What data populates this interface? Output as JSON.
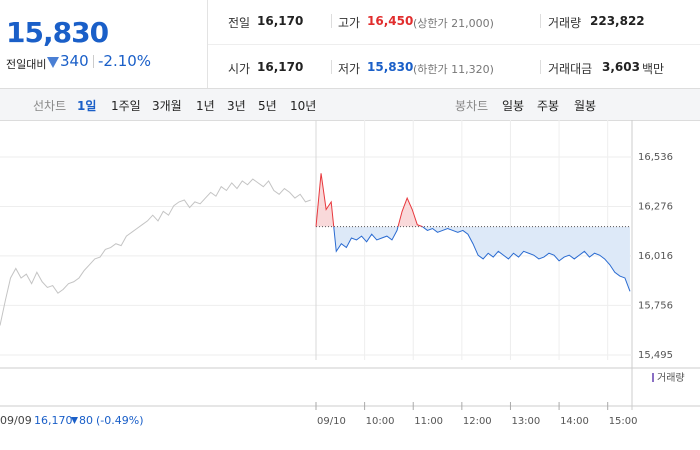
{
  "header": {
    "price": "15,830",
    "change_label": "전일대비",
    "change": "340",
    "change_rate": "-2.10%",
    "stats": [
      {
        "label": "전일",
        "value": "16,170"
      },
      {
        "label": "고가",
        "value": "16,450",
        "note": "(상한가 21,000)"
      },
      {
        "label": "거래량",
        "value": "223,822"
      },
      {
        "label": "시가",
        "value": "16,170"
      },
      {
        "label": "저가",
        "value": "15,830",
        "note": "(하한가 11,320)"
      },
      {
        "label": "거래대금",
        "value": "3,603",
        "unit": "백만"
      }
    ]
  },
  "toolbar": {
    "line_label": "선차트",
    "line_periods": [
      "1일",
      "1주일",
      "3개월",
      "1년",
      "3년",
      "5년",
      "10년"
    ],
    "active_index": 0,
    "candle_label": "봉차트",
    "candle_periods": [
      "일봉",
      "주봉",
      "월봉"
    ]
  },
  "chart_data": {
    "type": "line",
    "xlim": [
      0,
      780
    ],
    "xticks": [
      {
        "value": 390,
        "label": "09/10"
      },
      {
        "value": 450,
        "label": "10:00"
      },
      {
        "value": 510,
        "label": "11:00"
      },
      {
        "value": 570,
        "label": "12:00"
      },
      {
        "value": 630,
        "label": "13:00"
      },
      {
        "value": 690,
        "label": "14:00"
      },
      {
        "value": 750,
        "label": "15:00"
      }
    ],
    "ylim": [
      15495,
      16536
    ],
    "yticks": [
      {
        "value": 16536,
        "label": "16,536"
      },
      {
        "value": 16276,
        "label": "16,276"
      },
      {
        "value": 16016,
        "label": "16,016"
      },
      {
        "value": 15756,
        "label": "15,756"
      },
      {
        "value": 15495,
        "label": "15,495"
      }
    ],
    "grid": true,
    "baseline": 16170,
    "series": [
      {
        "color": "#c4c4c4",
        "x": [
          0,
          6.5,
          13,
          19.5,
          26,
          32.5,
          39,
          45.5,
          52,
          58.5,
          65,
          71.5,
          78,
          84.5,
          91,
          97.5,
          104,
          110.5,
          117,
          123.5,
          130,
          136.5,
          143,
          149.5,
          156,
          162.5,
          169,
          175.5,
          182,
          188.5,
          195,
          201.5,
          208,
          214.5,
          221,
          227.5,
          234,
          240.5,
          247,
          253.5,
          260,
          266.5,
          273,
          279.5,
          286,
          292.5,
          299,
          305.5,
          312,
          318.5,
          325,
          331.5,
          338,
          344.5,
          351,
          357.5,
          364,
          370.5,
          377,
          383.5
        ],
        "values": [
          15650,
          15780,
          15900,
          15950,
          15900,
          15920,
          15870,
          15930,
          15880,
          15850,
          15860,
          15820,
          15840,
          15870,
          15880,
          15900,
          15940,
          15970,
          16000,
          16010,
          16050,
          16060,
          16080,
          16070,
          16120,
          16140,
          16160,
          16180,
          16200,
          16230,
          16200,
          16250,
          16230,
          16280,
          16300,
          16310,
          16270,
          16300,
          16290,
          16320,
          16350,
          16330,
          16380,
          16360,
          16400,
          16370,
          16410,
          16390,
          16420,
          16400,
          16380,
          16410,
          16360,
          16340,
          16370,
          16350,
          16320,
          16340,
          16300,
          16310
        ]
      },
      {
        "color": "#2a6bd1",
        "up_color": "#e8383d",
        "fill": "#dde9f8",
        "up_fill": "#f9d9da",
        "x": [
          390,
          396.25,
          402.5,
          408.75,
          415,
          421.25,
          427.5,
          433.75,
          440,
          446.25,
          452.5,
          458.75,
          465,
          471.25,
          477.5,
          483.75,
          490,
          496.25,
          502.5,
          508.75,
          515,
          521.25,
          527.5,
          533.75,
          540,
          546.25,
          552.5,
          558.75,
          565,
          571.25,
          577.5,
          583.75,
          590,
          596.25,
          602.5,
          608.75,
          615,
          621.25,
          627.5,
          633.75,
          640,
          646.25,
          652.5,
          658.75,
          665,
          671.25,
          677.5,
          683.75,
          690,
          696.25,
          702.5,
          708.75,
          715,
          721.25,
          727.5,
          733.75,
          740,
          746.25,
          752.5,
          758.75,
          765,
          771.25,
          777.5
        ],
        "values": [
          16170,
          16450,
          16260,
          16300,
          16040,
          16080,
          16060,
          16110,
          16100,
          16120,
          16090,
          16130,
          16100,
          16110,
          16120,
          16100,
          16150,
          16250,
          16320,
          16260,
          16180,
          16170,
          16150,
          16160,
          16140,
          16150,
          16160,
          16150,
          16140,
          16150,
          16130,
          16080,
          16020,
          16000,
          16030,
          16010,
          16040,
          16020,
          16000,
          16030,
          16010,
          16040,
          16030,
          16020,
          16000,
          16010,
          16030,
          16020,
          15990,
          16010,
          16020,
          16000,
          16020,
          16040,
          16010,
          16030,
          16020,
          16000,
          15970,
          15930,
          15910,
          15900,
          15830
        ]
      }
    ],
    "volume_label": "거래량",
    "footer": {
      "date": "09/09",
      "close": "16,170",
      "change": "80",
      "rate": "(-0.49%)"
    }
  }
}
